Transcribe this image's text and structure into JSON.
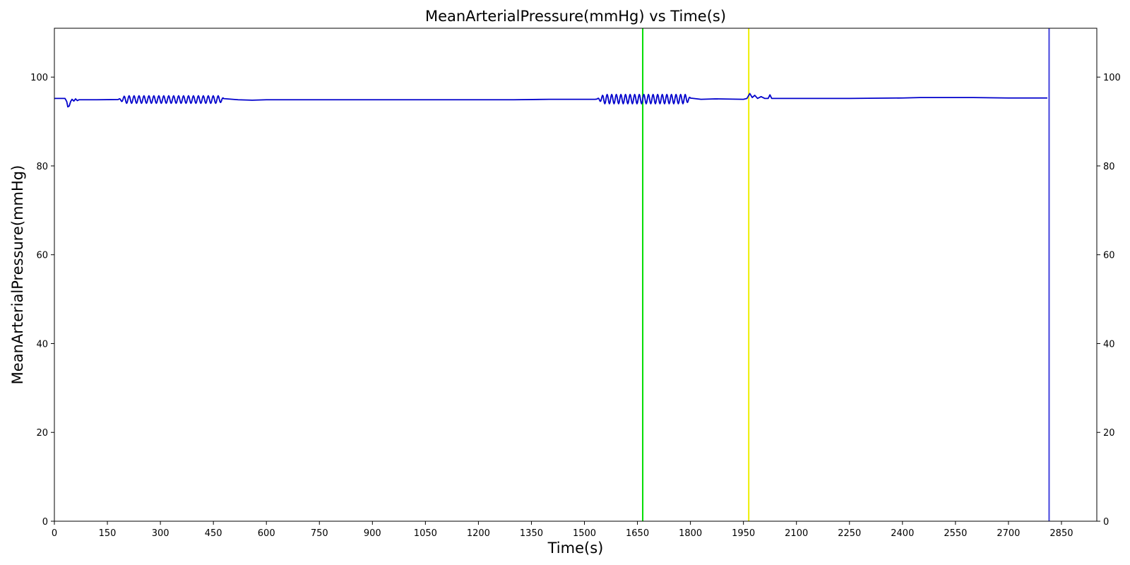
{
  "chart_data": {
    "type": "line",
    "title": "MeanArterialPressure(mmHg) vs Time(s)",
    "xlabel": "Time(s)",
    "ylabel": "MeanArterialPressure(mmHg)",
    "xlim": [
      0,
      2950
    ],
    "ylim": [
      0,
      111
    ],
    "xticks": [
      0,
      150,
      300,
      450,
      600,
      750,
      900,
      1050,
      1200,
      1350,
      1500,
      1650,
      1800,
      1950,
      2100,
      2250,
      2400,
      2550,
      2700,
      2850
    ],
    "yticks": [
      0,
      20,
      40,
      60,
      80,
      100
    ],
    "right_axis_ticks": [
      0,
      20,
      40,
      60,
      80,
      100
    ],
    "grid": false,
    "line_color": "#0000cc",
    "series": [
      {
        "x": [
          0,
          30,
          35,
          38,
          42,
          46,
          50,
          55,
          60,
          65,
          70,
          80,
          120,
          180,
          480,
          520,
          560,
          600,
          700,
          900,
          1100,
          1300,
          1400,
          1500,
          1530,
          1800,
          1830,
          1870,
          1950,
          1960,
          1968,
          1975,
          1982,
          1990,
          2000,
          2010,
          2020,
          2025,
          2030,
          2100,
          2250,
          2400,
          2450,
          2600,
          2700,
          2810
        ],
        "y": [
          95.2,
          95.2,
          94.5,
          93.3,
          93.5,
          94.5,
          95.0,
          94.6,
          95.1,
          94.7,
          94.9,
          94.9,
          94.9,
          95.0,
          95.0,
          94.9,
          94.8,
          94.9,
          94.9,
          94.9,
          94.9,
          94.9,
          95.0,
          95.0,
          95.0,
          95.0,
          95.0,
          95.1,
          95.0,
          95.2,
          96.3,
          95.4,
          95.9,
          95.2,
          95.6,
          95.2,
          95.2,
          96.0,
          95.2,
          95.2,
          95.2,
          95.3,
          95.4,
          95.4,
          95.3,
          95.3
        ]
      }
    ],
    "oscillations": [
      {
        "x_start": 180,
        "x_end": 480,
        "center": 94.95,
        "amplitude": 0.85,
        "period": 14
      },
      {
        "x_start": 1535,
        "x_end": 1800,
        "center": 95.05,
        "amplitude": 1.05,
        "period": 13
      }
    ],
    "vertical_lines": [
      {
        "x": 1665,
        "color": "#00dd00"
      },
      {
        "x": 1965,
        "color": "#eeee00"
      },
      {
        "x": 2815,
        "color": "#4444dd"
      }
    ]
  }
}
